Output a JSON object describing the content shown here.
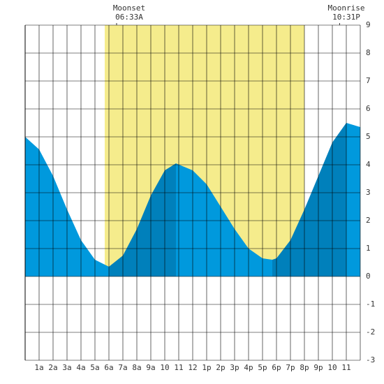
{
  "chart_data": {
    "type": "area",
    "daylight": [
      5.7,
      20.0
    ],
    "daylight_color": "#f5ec8c",
    "annotations": [
      {
        "name": "Moonset",
        "time": "06:33A",
        "x": 6.55
      },
      {
        "name": "Moonrise",
        "time": "10:31P",
        "x": 22.52
      }
    ],
    "series": [
      {
        "color": "#0099dd",
        "x": [
          0,
          1,
          2,
          3,
          4,
          5,
          6,
          null,
          10.8,
          12,
          13,
          14,
          15,
          16,
          17,
          17.7,
          null,
          23,
          24
        ],
        "values": [
          5.0,
          4.55,
          3.6,
          2.4,
          1.3,
          0.6,
          0.35,
          null,
          4.05,
          3.8,
          3.3,
          2.5,
          1.7,
          1.0,
          0.65,
          0.6,
          null,
          5.5,
          5.35
        ]
      },
      {
        "color": "#0080bb",
        "x": [
          6,
          7,
          8,
          9,
          10,
          10.8,
          null,
          17.7,
          18,
          19,
          20,
          21,
          22,
          23
        ],
        "values": [
          0.35,
          0.75,
          1.7,
          2.9,
          3.8,
          4.05,
          null,
          0.6,
          0.65,
          1.3,
          2.4,
          3.6,
          4.8,
          5.5
        ]
      }
    ],
    "xlim": [
      0,
      24
    ],
    "xticks": [
      {
        "value": 1,
        "label": "1a"
      },
      {
        "value": 2,
        "label": "2a"
      },
      {
        "value": 3,
        "label": "3a"
      },
      {
        "value": 4,
        "label": "4a"
      },
      {
        "value": 5,
        "label": "5a"
      },
      {
        "value": 6,
        "label": "6a"
      },
      {
        "value": 7,
        "label": "7a"
      },
      {
        "value": 8,
        "label": "8a"
      },
      {
        "value": 9,
        "label": "9a"
      },
      10,
      11,
      12,
      {
        "value": 13,
        "label": "1p"
      },
      {
        "value": 14,
        "label": "2p"
      },
      {
        "value": 15,
        "label": "3p"
      },
      {
        "value": 16,
        "label": "4p"
      },
      {
        "value": 17,
        "label": "5p"
      },
      {
        "value": 18,
        "label": "6p"
      },
      {
        "value": 19,
        "label": "7p"
      },
      {
        "value": 20,
        "label": "8p"
      },
      {
        "value": 21,
        "label": "9p"
      },
      {
        "value": 22,
        "label": "10"
      },
      {
        "value": 23,
        "label": "11"
      }
    ],
    "ylim": [
      -3,
      9
    ],
    "yticks": [
      -3,
      -2,
      -1,
      0,
      1,
      2,
      3,
      4,
      5,
      6,
      7,
      8,
      9
    ],
    "grid": true
  }
}
